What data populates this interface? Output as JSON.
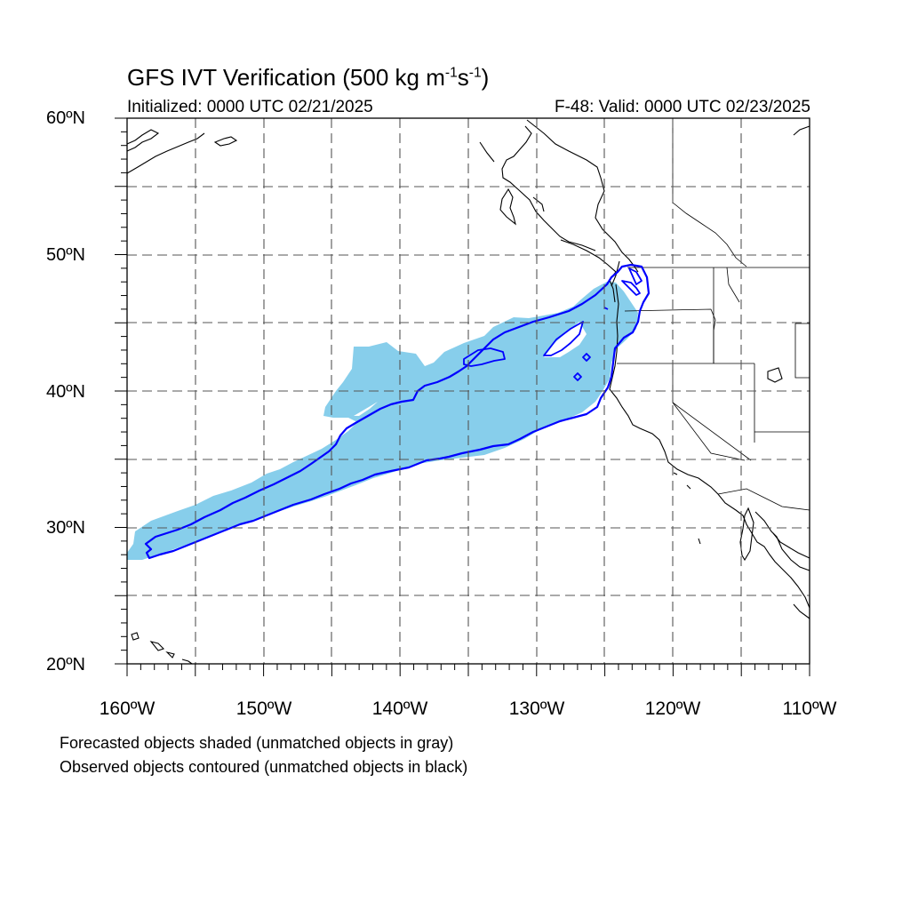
{
  "title": {
    "main": "GFS IVT Verification (500 kg m",
    "exp1": "-1",
    "mid": "s",
    "exp2": "-1",
    "close": ")"
  },
  "initialized": "Initialized: 0000 UTC 02/21/2025",
  "valid": "F-48: Valid: 0000 UTC 02/23/2025",
  "lat_labels": [
    "60ºN",
    "50ºN",
    "40ºN",
    "30ºN",
    "20ºN"
  ],
  "lon_labels": [
    "160ºW",
    "150ºW",
    "140ºW",
    "130ºW",
    "120ºW",
    "110ºW"
  ],
  "notes": [
    "Forecasted objects shaded (unmatched objects in gray)",
    "Observed objects contoured (unmatched objects in black)"
  ],
  "colors": {
    "forecast_fill": "#87ceeb",
    "observed_contour": "#0000ff",
    "coastline": "#000000",
    "grid": "#555555"
  },
  "map_extent": {
    "lon": [
      -160,
      -110
    ],
    "lat": [
      20,
      60
    ]
  }
}
